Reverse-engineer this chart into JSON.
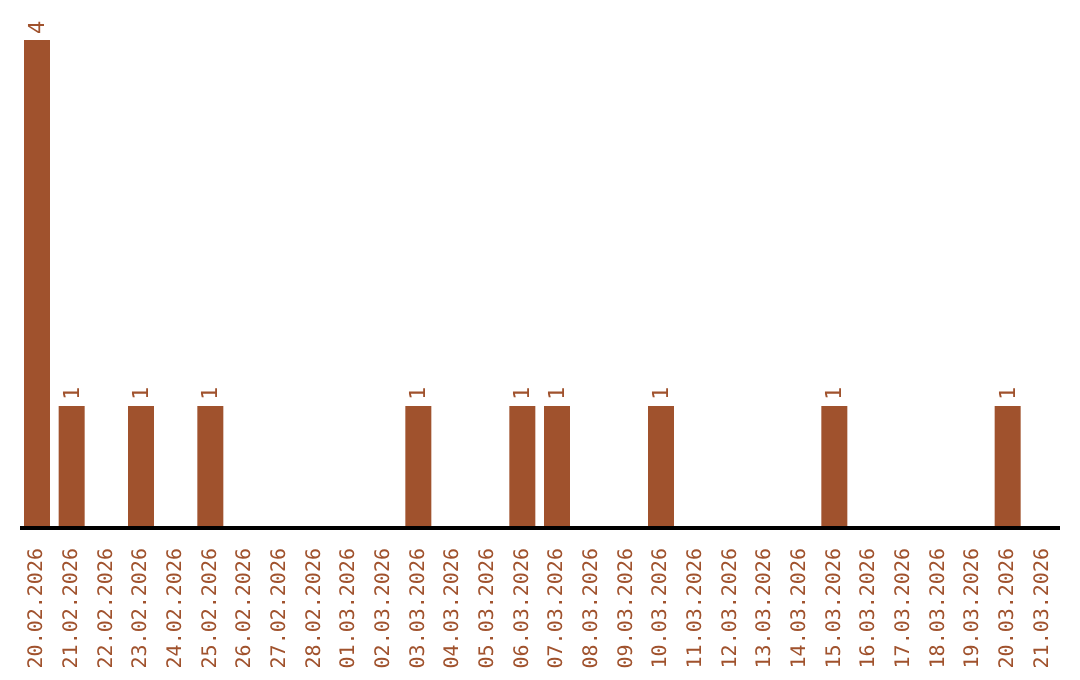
{
  "chart_data": {
    "type": "bar",
    "color": "#a0522d",
    "ylim": [
      0,
      4
    ],
    "tick_labels": "x",
    "categories": [
      "20.02.2026",
      "21.02.2026",
      "22.02.2026",
      "23.02.2026",
      "24.02.2026",
      "25.02.2026",
      "26.02.2026",
      "27.02.2026",
      "28.02.2026",
      "01.03.2026",
      "02.03.2026",
      "03.03.2026",
      "04.03.2026",
      "05.03.2026",
      "06.03.2026",
      "07.03.2026",
      "08.03.2026",
      "09.03.2026",
      "10.03.2026",
      "11.03.2026",
      "12.03.2026",
      "13.03.2026",
      "14.03.2026",
      "15.03.2026",
      "16.03.2026",
      "17.03.2026",
      "18.03.2026",
      "19.03.2026",
      "20.03.2026",
      "21.03.2026"
    ],
    "values": [
      4,
      1,
      0,
      1,
      0,
      1,
      0,
      0,
      0,
      0,
      0,
      1,
      0,
      0,
      1,
      1,
      0,
      0,
      1,
      0,
      0,
      0,
      0,
      1,
      0,
      0,
      0,
      0,
      1,
      0
    ],
    "value_labels": [
      "4",
      "1",
      null,
      "1",
      null,
      "1",
      null,
      null,
      null,
      null,
      null,
      "1",
      null,
      null,
      "1",
      "1",
      null,
      null,
      "1",
      null,
      null,
      null,
      null,
      "1",
      null,
      null,
      null,
      null,
      "1",
      null
    ],
    "grid": false,
    "legend": false
  }
}
